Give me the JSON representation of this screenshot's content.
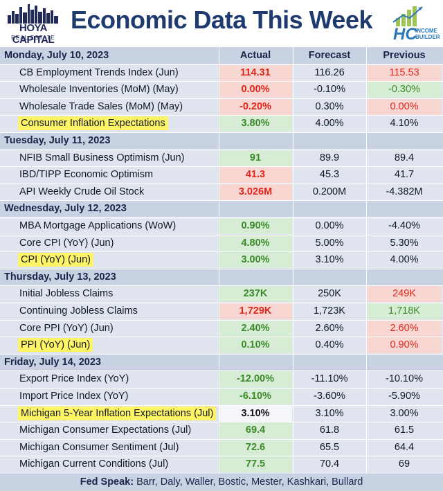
{
  "header": {
    "title": "Economic Data This Week",
    "logo_left_name": "HOYA CAPITAL",
    "logo_left_sub": "REAL ESTATE",
    "logo_right_mark": "HC",
    "logo_right_text_1": "INCOME",
    "logo_right_text_2": "BUILDER"
  },
  "colors": {
    "title": "#1f3a6e",
    "section_bg": "#c9d2e2",
    "row_bg": "#dfe4ee",
    "highlight": "#fff466",
    "green_bg": "#d7ecd4",
    "red_bg": "#f8d7d2",
    "green_text": "#3a8a2a",
    "red_text": "#e0261b"
  },
  "chart_data": {
    "type": "table",
    "title": "Economic Data This Week",
    "columns": [
      "Actual",
      "Forecast",
      "Previous"
    ],
    "sections": [
      {
        "day": "Monday, July 10, 2023",
        "rows": [
          {
            "label": "CB Employment Trends Index (Jun)",
            "highlight": false,
            "actual": "114.31",
            "actual_style": "red",
            "forecast": "116.26",
            "previous": "115.53",
            "previous_style": "red"
          },
          {
            "label": "Wholesale Inventories (MoM) (May)",
            "highlight": false,
            "actual": "0.00%",
            "actual_style": "red",
            "forecast": "-0.10%",
            "previous": "-0.30%",
            "previous_style": "green"
          },
          {
            "label": "Wholesale Trade Sales (MoM) (May)",
            "highlight": false,
            "actual": "-0.20%",
            "actual_style": "red",
            "forecast": "0.30%",
            "previous": "0.00%",
            "previous_style": "red"
          },
          {
            "label": "Consumer Inflation Expectations",
            "highlight": true,
            "actual": "3.80%",
            "actual_style": "green",
            "forecast": "4.00%",
            "previous": "4.10%",
            "previous_style": "none"
          }
        ]
      },
      {
        "day": "Tuesday, July 11, 2023",
        "rows": [
          {
            "label": "NFIB Small Business Optimism (Jun)",
            "highlight": false,
            "actual": "91",
            "actual_style": "green",
            "forecast": "89.9",
            "previous": "89.4",
            "previous_style": "none"
          },
          {
            "label": "IBD/TIPP Economic Optimism",
            "highlight": false,
            "actual": "41.3",
            "actual_style": "red",
            "forecast": "45.3",
            "previous": "41.7",
            "previous_style": "none"
          },
          {
            "label": "API Weekly Crude Oil Stock",
            "highlight": false,
            "actual": "3.026M",
            "actual_style": "red",
            "forecast": "0.200M",
            "previous": "-4.382M",
            "previous_style": "none"
          }
        ]
      },
      {
        "day": "Wednesday, July 12, 2023",
        "rows": [
          {
            "label": "MBA Mortgage Applications (WoW)",
            "highlight": false,
            "actual": "0.90%",
            "actual_style": "green",
            "forecast": "0.00%",
            "previous": "-4.40%",
            "previous_style": "none"
          },
          {
            "label": "Core CPI (YoY) (Jun)",
            "highlight": false,
            "actual": "4.80%",
            "actual_style": "green",
            "forecast": "5.00%",
            "previous": "5.30%",
            "previous_style": "none"
          },
          {
            "label": "CPI (YoY) (Jun)",
            "highlight": true,
            "actual": "3.00%",
            "actual_style": "green",
            "forecast": "3.10%",
            "previous": "4.00%",
            "previous_style": "none"
          }
        ]
      },
      {
        "day": "Thursday, July 13, 2023",
        "rows": [
          {
            "label": "Initial Jobless Claims",
            "highlight": false,
            "actual": "237K",
            "actual_style": "green",
            "forecast": "250K",
            "previous": "249K",
            "previous_style": "red"
          },
          {
            "label": "Continuing Jobless Claims",
            "highlight": false,
            "actual": "1,729K",
            "actual_style": "red",
            "forecast": "1,723K",
            "previous": "1,718K",
            "previous_style": "green"
          },
          {
            "label": "Core PPI (YoY) (Jun)",
            "highlight": false,
            "actual": "2.40%",
            "actual_style": "green",
            "forecast": "2.60%",
            "previous": "2.60%",
            "previous_style": "red"
          },
          {
            "label": "PPI (YoY) (Jun)",
            "highlight": true,
            "actual": "0.10%",
            "actual_style": "green",
            "forecast": "0.40%",
            "previous": "0.90%",
            "previous_style": "red"
          }
        ]
      },
      {
        "day": "Friday, July 14, 2023",
        "rows": [
          {
            "label": "Export Price Index (YoY)",
            "highlight": false,
            "actual": "-12.00%",
            "actual_style": "green",
            "forecast": "-11.10%",
            "previous": "-10.10%",
            "previous_style": "none"
          },
          {
            "label": "Import Price Index (YoY)",
            "highlight": false,
            "actual": "-6.10%",
            "actual_style": "green",
            "forecast": "-3.60%",
            "previous": "-5.90%",
            "previous_style": "none"
          },
          {
            "label": "Michigan 5-Year Inflation Expectations (Jul)",
            "highlight": true,
            "actual": "3.10%",
            "actual_style": "black",
            "forecast": "3.10%",
            "previous": "3.00%",
            "previous_style": "none"
          },
          {
            "label": "Michigan Consumer Expectations (Jul)",
            "highlight": false,
            "actual": "69.4",
            "actual_style": "green",
            "forecast": "61.8",
            "previous": "61.5",
            "previous_style": "none"
          },
          {
            "label": "Michigan Consumer Sentiment (Jul)",
            "highlight": false,
            "actual": "72.6",
            "actual_style": "green",
            "forecast": "65.5",
            "previous": "64.4",
            "previous_style": "none"
          },
          {
            "label": "Michigan Current Conditions (Jul)",
            "highlight": false,
            "actual": "77.5",
            "actual_style": "green",
            "forecast": "70.4",
            "previous": "69",
            "previous_style": "none"
          }
        ]
      }
    ],
    "footer_label": "Fed Speak:",
    "footer_text": "Barr, Daly, Waller, Bostic, Mester, Kashkari, Bullard"
  }
}
